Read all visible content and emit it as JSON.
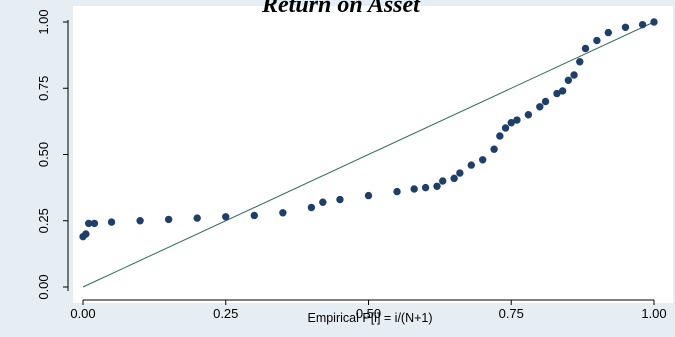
{
  "chart_data": {
    "type": "scatter",
    "title": "Return on Asset",
    "xlabel": "Empirical P[i] = i/(N+1)",
    "ylabel": "",
    "xlim": [
      0,
      1
    ],
    "ylim": [
      0,
      1
    ],
    "x_ticks": [
      "0.00",
      "0.25",
      "0.50",
      "0.75",
      "1.00"
    ],
    "y_ticks": [
      "0.00",
      "0.25",
      "0.50",
      "0.75",
      "1.00"
    ],
    "grid": false,
    "colors": {
      "points": "#1f3f6b",
      "reference_line": "#2e6b4f",
      "plot_bg": "#ffffff",
      "outer_bg": "#e6eef3"
    },
    "reference_line": {
      "x": [
        0,
        1
      ],
      "y": [
        0,
        1
      ]
    },
    "series": [
      {
        "x": [
          0.0,
          0.005,
          0.01,
          0.02,
          0.05,
          0.1,
          0.15,
          0.2,
          0.25,
          0.3,
          0.35,
          0.4,
          0.42,
          0.45,
          0.5,
          0.55,
          0.58,
          0.6,
          0.62,
          0.63,
          0.65,
          0.66,
          0.68,
          0.7,
          0.72,
          0.73,
          0.74,
          0.75,
          0.76,
          0.78,
          0.8,
          0.81,
          0.83,
          0.84,
          0.85,
          0.86,
          0.87,
          0.88,
          0.9,
          0.92,
          0.95,
          0.98,
          1.0
        ],
        "y": [
          0.19,
          0.2,
          0.24,
          0.24,
          0.245,
          0.25,
          0.255,
          0.26,
          0.265,
          0.27,
          0.28,
          0.3,
          0.32,
          0.33,
          0.345,
          0.36,
          0.37,
          0.375,
          0.38,
          0.4,
          0.41,
          0.43,
          0.46,
          0.48,
          0.52,
          0.57,
          0.6,
          0.62,
          0.63,
          0.65,
          0.68,
          0.7,
          0.73,
          0.74,
          0.78,
          0.8,
          0.85,
          0.9,
          0.93,
          0.96,
          0.98,
          0.99,
          1.0
        ]
      }
    ]
  }
}
